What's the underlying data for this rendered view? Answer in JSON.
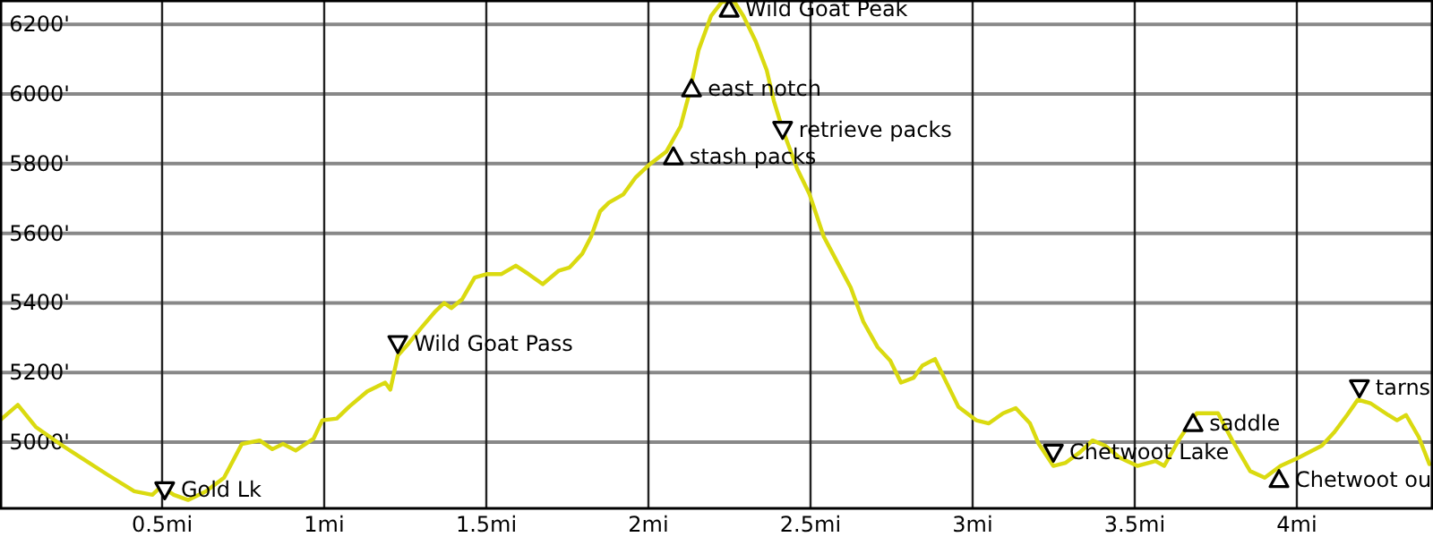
{
  "chart_data": {
    "type": "line",
    "xlim": [
      0,
      4.42
    ],
    "ylim": [
      4810,
      6270
    ],
    "grid": true,
    "xticks": [
      {
        "value": 0.5,
        "label": "0.5mi"
      },
      {
        "value": 1,
        "label": "1mi"
      },
      {
        "value": 1.5,
        "label": "1.5mi"
      },
      {
        "value": 2,
        "label": "2mi"
      },
      {
        "value": 2.5,
        "label": "2.5mi"
      },
      {
        "value": 3,
        "label": "3mi"
      },
      {
        "value": 3.5,
        "label": "3.5mi"
      },
      {
        "value": 4,
        "label": "4mi"
      }
    ],
    "yticks": [
      {
        "value": 5000,
        "label": "5000'"
      },
      {
        "value": 5200,
        "label": "5200'"
      },
      {
        "value": 5400,
        "label": "5400'"
      },
      {
        "value": 5600,
        "label": "5600'"
      },
      {
        "value": 5800,
        "label": "5800'"
      },
      {
        "value": 6000,
        "label": "6000'"
      },
      {
        "value": 6200,
        "label": "6200'"
      }
    ],
    "series": [
      {
        "color": "#dada10",
        "x": [
          0,
          0.055,
          0.11,
          0.193,
          0.249,
          0.331,
          0.414,
          0.47,
          0.497,
          0.536,
          0.58,
          0.635,
          0.691,
          0.746,
          0.801,
          0.84,
          0.873,
          0.912,
          0.967,
          0.994,
          1.039,
          1.077,
          1.133,
          1.188,
          1.204,
          1.227,
          1.26,
          1.298,
          1.343,
          1.37,
          1.392,
          1.425,
          1.464,
          1.503,
          1.547,
          1.591,
          1.63,
          1.674,
          1.724,
          1.757,
          1.796,
          1.823,
          1.851,
          1.878,
          1.923,
          1.961,
          2.0,
          2.055,
          2.099,
          2.127,
          2.155,
          2.193,
          2.227,
          2.265,
          2.293,
          2.331,
          2.365,
          2.387,
          2.414,
          2.459,
          2.497,
          2.541,
          2.569,
          2.624,
          2.663,
          2.707,
          2.746,
          2.779,
          2.818,
          2.845,
          2.884,
          2.917,
          2.956,
          3.011,
          3.05,
          3.094,
          3.133,
          3.177,
          3.204,
          3.249,
          3.287,
          3.331,
          3.37,
          3.409,
          3.453,
          3.508,
          3.564,
          3.591,
          3.635,
          3.691,
          3.757,
          3.801,
          3.856,
          3.901,
          3.95,
          4.006,
          4.077,
          4.116,
          4.155,
          4.188,
          4.227,
          4.282,
          4.309,
          4.337,
          4.376,
          4.409
        ],
        "values": [
          5063,
          5107,
          5044,
          4990,
          4956,
          4907,
          4859,
          4849,
          4873,
          4849,
          4834,
          4859,
          4898,
          4995,
          5005,
          4980,
          4995,
          4976,
          5010,
          5063,
          5068,
          5102,
          5146,
          5171,
          5151,
          5249,
          5283,
          5327,
          5376,
          5400,
          5385,
          5410,
          5473,
          5483,
          5483,
          5507,
          5483,
          5454,
          5493,
          5502,
          5541,
          5590,
          5663,
          5688,
          5712,
          5761,
          5795,
          5834,
          5907,
          6005,
          6127,
          6224,
          6265,
          6265,
          6224,
          6151,
          6068,
          5980,
          5898,
          5785,
          5712,
          5590,
          5541,
          5444,
          5346,
          5273,
          5234,
          5171,
          5185,
          5220,
          5239,
          5176,
          5102,
          5063,
          5054,
          5083,
          5098,
          5054,
          4995,
          4932,
          4941,
          4971,
          5005,
          4990,
          4956,
          4932,
          4946,
          4932,
          5005,
          5083,
          5083,
          5005,
          4917,
          4898,
          4932,
          4956,
          4990,
          5029,
          5078,
          5122,
          5112,
          5078,
          5063,
          5078,
          5015,
          4937
        ]
      },
      {
        "type": "scatter",
        "color": "#000000",
        "marker": "triangle",
        "x": [
          2.077,
          2.133,
          2.249,
          3.68,
          3.945
        ],
        "values": [
          5820,
          6015,
          6244,
          5054,
          4893
        ]
      },
      {
        "type": "scatter",
        "color": "#000000",
        "x": [
          0.508,
          1.227,
          2.414,
          3.249,
          4.193
        ],
        "values": [
          4863,
          5283,
          5898,
          4971,
          5156
        ]
      }
    ],
    "annotations": [
      {
        "text": "Gold Lk",
        "x": 0.508,
        "y": 4863
      },
      {
        "text": "Wild Goat Pass",
        "x": 1.227,
        "y": 5283
      },
      {
        "text": "stash packs",
        "x": 2.077,
        "y": 5820
      },
      {
        "text": "east notch",
        "x": 2.133,
        "y": 6015
      },
      {
        "text": "Wild Goat Peak",
        "x": 2.249,
        "y": 6244
      },
      {
        "text": "retrieve packs",
        "x": 2.414,
        "y": 5898
      },
      {
        "text": "Chetwoot Lake",
        "x": 3.249,
        "y": 4971
      },
      {
        "text": "saddle",
        "x": 3.68,
        "y": 5054
      },
      {
        "text": "Chetwoot ou",
        "x": 3.945,
        "y": 4893
      },
      {
        "text": "tarns",
        "x": 4.193,
        "y": 5156
      }
    ]
  }
}
